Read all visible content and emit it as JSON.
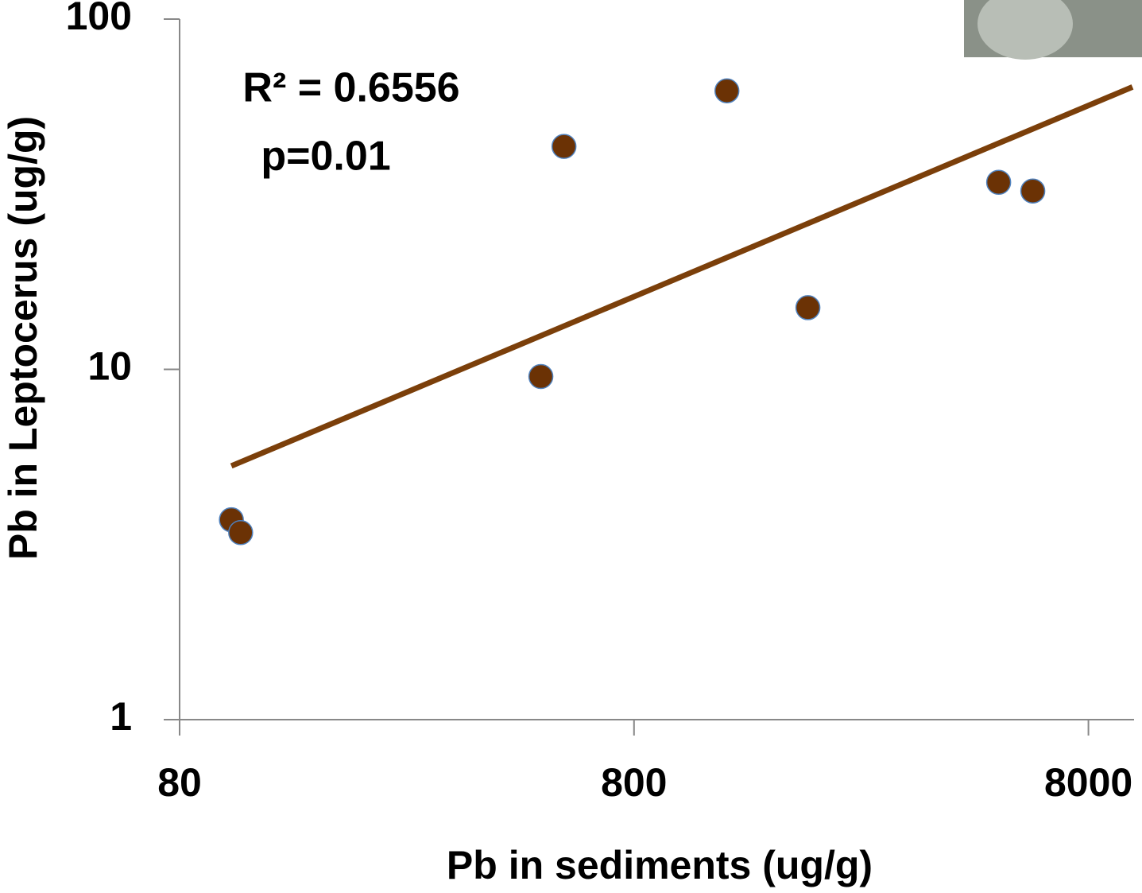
{
  "chart_data": {
    "type": "scatter",
    "x_label": "Pb in sediments (ug/g)",
    "y_label": "Pb in  Leptocerus  (ug/g)",
    "annotations": [
      "R² = 0.6556",
      "p=0.01"
    ],
    "x_log": true,
    "y_log": true,
    "xlim": [
      80,
      10000
    ],
    "ylim": [
      1,
      100
    ],
    "xticks": [
      80,
      800,
      8000
    ],
    "yticks": [
      1,
      10,
      100
    ],
    "series": [
      {
        "color": "#6b3205",
        "x": [
          104,
          109,
          499,
          561,
          1281,
          1931,
          5076,
          6035
        ],
        "values": [
          3.72,
          3.42,
          9.54,
          43.3,
          62.4,
          15.0,
          34.2,
          32.3
        ]
      }
    ],
    "trendline": {
      "color": "#7b3f0a",
      "x": [
        104,
        10000
      ],
      "values": [
        5.3,
        64
      ]
    }
  }
}
